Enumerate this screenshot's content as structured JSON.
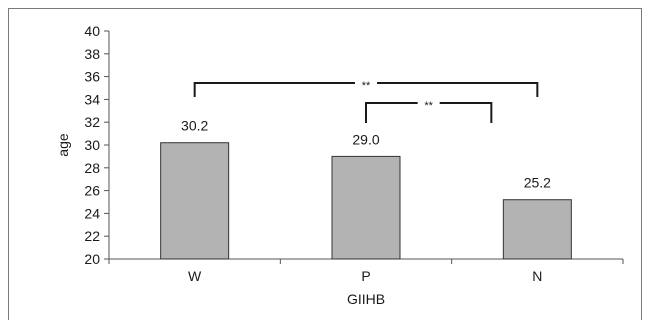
{
  "chart_data": {
    "type": "bar",
    "categories": [
      "W",
      "P",
      "N"
    ],
    "values": [
      30.2,
      29.0,
      25.2
    ],
    "data_labels": [
      "30.2",
      "29.0",
      "25.2"
    ],
    "xlabel": "GIIHB",
    "ylabel": "age",
    "ylim": [
      20,
      40
    ],
    "yticks": [
      20,
      22,
      24,
      26,
      28,
      30,
      32,
      34,
      36,
      38,
      40
    ],
    "grid": false,
    "legend": "none",
    "bar_color": "#b3b3b3",
    "significance": [
      {
        "from": "W",
        "to": "N",
        "label": "**"
      },
      {
        "from": "P",
        "to": "N",
        "label": "**"
      }
    ]
  }
}
